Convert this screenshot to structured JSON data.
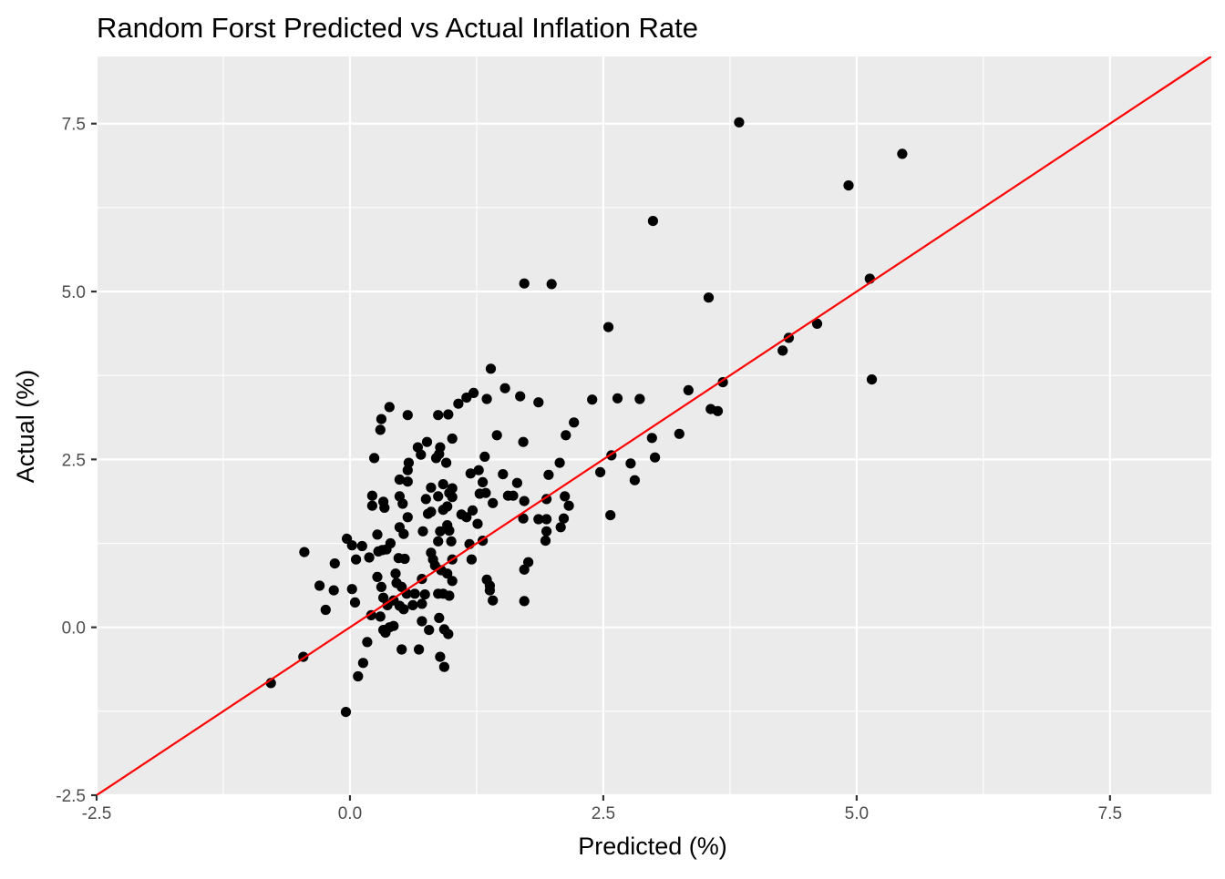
{
  "chart_data": {
    "type": "scatter",
    "title": "Random Forst Predicted vs Actual Inflation Rate",
    "xlabel": "Predicted (%)",
    "ylabel": "Actual (%)",
    "xlim": [
      -2.5,
      8.5
    ],
    "ylim": [
      -2.5,
      8.5
    ],
    "x_ticks": [
      -2.5,
      0.0,
      2.5,
      5.0,
      7.5
    ],
    "y_ticks": [
      -2.5,
      0.0,
      2.5,
      5.0,
      7.5
    ],
    "x_tick_labels": [
      "-2.5",
      "0.0",
      "2.5",
      "5.0",
      "7.5"
    ],
    "y_tick_labels": [
      "-2.5",
      "0.0",
      "2.5",
      "5.0",
      "7.5"
    ],
    "grid": true,
    "colors": {
      "panel_background": "#ebebeb",
      "grid": "#ffffff",
      "points": "#000000",
      "reference_line": "#ff0000",
      "axis_text": "#4d4d4d",
      "title_text": "#000000"
    },
    "reference_line": {
      "slope": 1,
      "intercept": 0
    },
    "points": [
      [
        3.84,
        7.52
      ],
      [
        5.45,
        7.05
      ],
      [
        4.92,
        6.58
      ],
      [
        2.99,
        6.05
      ],
      [
        1.72,
        5.12
      ],
      [
        1.99,
        5.11
      ],
      [
        5.13,
        5.19
      ],
      [
        3.54,
        4.91
      ],
      [
        2.55,
        4.47
      ],
      [
        4.61,
        4.52
      ],
      [
        4.33,
        4.31
      ],
      [
        4.27,
        4.12
      ],
      [
        5.15,
        3.69
      ],
      [
        1.39,
        3.85
      ],
      [
        1.53,
        3.56
      ],
      [
        3.34,
        3.53
      ],
      [
        3.68,
        3.65
      ],
      [
        1.22,
        3.49
      ],
      [
        1.15,
        3.42
      ],
      [
        1.35,
        3.4
      ],
      [
        1.68,
        3.44
      ],
      [
        2.39,
        3.39
      ],
      [
        2.64,
        3.41
      ],
      [
        2.86,
        3.4
      ],
      [
        1.86,
        3.35
      ],
      [
        1.07,
        3.33
      ],
      [
        3.56,
        3.25
      ],
      [
        3.63,
        3.22
      ],
      [
        0.39,
        3.28
      ],
      [
        0.57,
        3.16
      ],
      [
        0.87,
        3.16
      ],
      [
        0.97,
        3.17
      ],
      [
        0.31,
        3.1
      ],
      [
        0.3,
        2.94
      ],
      [
        3.25,
        2.88
      ],
      [
        2.21,
        3.05
      ],
      [
        2.13,
        2.86
      ],
      [
        1.45,
        2.86
      ],
      [
        1.01,
        2.81
      ],
      [
        0.76,
        2.76
      ],
      [
        1.71,
        2.76
      ],
      [
        2.98,
        2.82
      ],
      [
        0.67,
        2.68
      ],
      [
        0.89,
        2.68
      ],
      [
        0.88,
        2.58
      ],
      [
        0.7,
        2.57
      ],
      [
        0.24,
        2.52
      ],
      [
        0.85,
        2.52
      ],
      [
        1.33,
        2.54
      ],
      [
        2.58,
        2.56
      ],
      [
        3.01,
        2.53
      ],
      [
        2.77,
        2.44
      ],
      [
        0.58,
        2.45
      ],
      [
        0.95,
        2.45
      ],
      [
        2.07,
        2.45
      ],
      [
        0.57,
        2.34
      ],
      [
        1.27,
        2.34
      ],
      [
        1.19,
        2.29
      ],
      [
        1.51,
        2.28
      ],
      [
        1.96,
        2.27
      ],
      [
        2.47,
        2.31
      ],
      [
        2.81,
        2.19
      ],
      [
        0.49,
        2.2
      ],
      [
        0.57,
        2.17
      ],
      [
        1.31,
        2.16
      ],
      [
        1.65,
        2.15
      ],
      [
        0.92,
        2.13
      ],
      [
        0.8,
        2.08
      ],
      [
        1.01,
        2.07
      ],
      [
        0.98,
        2.0
      ],
      [
        1.28,
        1.99
      ],
      [
        1.34,
        2.0
      ],
      [
        0.22,
        1.96
      ],
      [
        0.49,
        1.95
      ],
      [
        0.87,
        1.95
      ],
      [
        1.01,
        1.94
      ],
      [
        1.56,
        1.96
      ],
      [
        1.61,
        1.96
      ],
      [
        0.75,
        1.91
      ],
      [
        1.94,
        1.91
      ],
      [
        2.12,
        1.95
      ],
      [
        0.33,
        1.87
      ],
      [
        1.72,
        1.88
      ],
      [
        0.52,
        1.84
      ],
      [
        0.22,
        1.81
      ],
      [
        0.34,
        1.78
      ],
      [
        0.96,
        1.8
      ],
      [
        1.41,
        1.85
      ],
      [
        2.16,
        1.81
      ],
      [
        0.92,
        1.75
      ],
      [
        0.8,
        1.72
      ],
      [
        1.21,
        1.74
      ],
      [
        1.1,
        1.68
      ],
      [
        0.77,
        1.69
      ],
      [
        1.15,
        1.64
      ],
      [
        0.57,
        1.64
      ],
      [
        1.71,
        1.62
      ],
      [
        1.86,
        1.61
      ],
      [
        1.94,
        1.61
      ],
      [
        2.11,
        1.62
      ],
      [
        2.57,
        1.67
      ],
      [
        1.26,
        1.54
      ],
      [
        0.96,
        1.52
      ],
      [
        0.49,
        1.49
      ],
      [
        2.08,
        1.49
      ],
      [
        0.72,
        1.43
      ],
      [
        0.89,
        1.43
      ],
      [
        0.98,
        1.44
      ],
      [
        1.94,
        1.43
      ],
      [
        0.27,
        1.38
      ],
      [
        0.53,
        1.39
      ],
      [
        0.87,
        1.28
      ],
      [
        1.0,
        1.28
      ],
      [
        1.93,
        1.29
      ],
      [
        1.31,
        1.29
      ],
      [
        0.4,
        1.25
      ],
      [
        1.18,
        1.24
      ],
      [
        -0.03,
        1.32
      ],
      [
        0.02,
        1.22
      ],
      [
        0.12,
        1.21
      ],
      [
        0.32,
        1.15
      ],
      [
        0.36,
        1.16
      ],
      [
        0.28,
        1.13
      ],
      [
        -0.45,
        1.12
      ],
      [
        0.8,
        1.11
      ],
      [
        0.19,
        1.04
      ],
      [
        0.48,
        1.03
      ],
      [
        0.54,
        1.02
      ],
      [
        0.06,
        1.01
      ],
      [
        0.82,
        1.01
      ],
      [
        1.01,
        1.01
      ],
      [
        1.2,
        1.01
      ],
      [
        -0.15,
        0.95
      ],
      [
        0.84,
        0.92
      ],
      [
        1.76,
        0.97
      ],
      [
        0.9,
        0.85
      ],
      [
        1.72,
        0.86
      ],
      [
        0.45,
        0.8
      ],
      [
        0.96,
        0.8
      ],
      [
        0.27,
        0.75
      ],
      [
        0.71,
        0.72
      ],
      [
        1.35,
        0.71
      ],
      [
        1.01,
        0.69
      ],
      [
        0.46,
        0.66
      ],
      [
        -0.3,
        0.62
      ],
      [
        0.31,
        0.6
      ],
      [
        0.51,
        0.6
      ],
      [
        1.38,
        0.62
      ],
      [
        -0.16,
        0.55
      ],
      [
        0.02,
        0.57
      ],
      [
        0.56,
        0.5
      ],
      [
        0.64,
        0.5
      ],
      [
        0.74,
        0.49
      ],
      [
        0.87,
        0.5
      ],
      [
        0.92,
        0.5
      ],
      [
        0.98,
        0.47
      ],
      [
        1.38,
        0.55
      ],
      [
        0.33,
        0.44
      ],
      [
        0.43,
        0.4
      ],
      [
        0.05,
        0.37
      ],
      [
        0.37,
        0.33
      ],
      [
        0.49,
        0.32
      ],
      [
        0.62,
        0.33
      ],
      [
        0.71,
        0.35
      ],
      [
        1.41,
        0.4
      ],
      [
        1.72,
        0.39
      ],
      [
        0.53,
        0.27
      ],
      [
        -0.24,
        0.26
      ],
      [
        0.21,
        0.18
      ],
      [
        0.3,
        0.16
      ],
      [
        0.88,
        0.14
      ],
      [
        0.71,
        0.09
      ],
      [
        0.39,
        0.0
      ],
      [
        0.43,
        0.02
      ],
      [
        0.33,
        -0.04
      ],
      [
        0.35,
        -0.08
      ],
      [
        0.78,
        -0.04
      ],
      [
        0.93,
        -0.03
      ],
      [
        0.97,
        -0.1
      ],
      [
        0.17,
        -0.22
      ],
      [
        0.51,
        -0.33
      ],
      [
        0.68,
        -0.33
      ],
      [
        -0.46,
        -0.44
      ],
      [
        0.89,
        -0.44
      ],
      [
        0.13,
        -0.53
      ],
      [
        0.93,
        -0.59
      ],
      [
        0.08,
        -0.73
      ],
      [
        -0.78,
        -0.83
      ],
      [
        -0.04,
        -1.26
      ]
    ]
  }
}
